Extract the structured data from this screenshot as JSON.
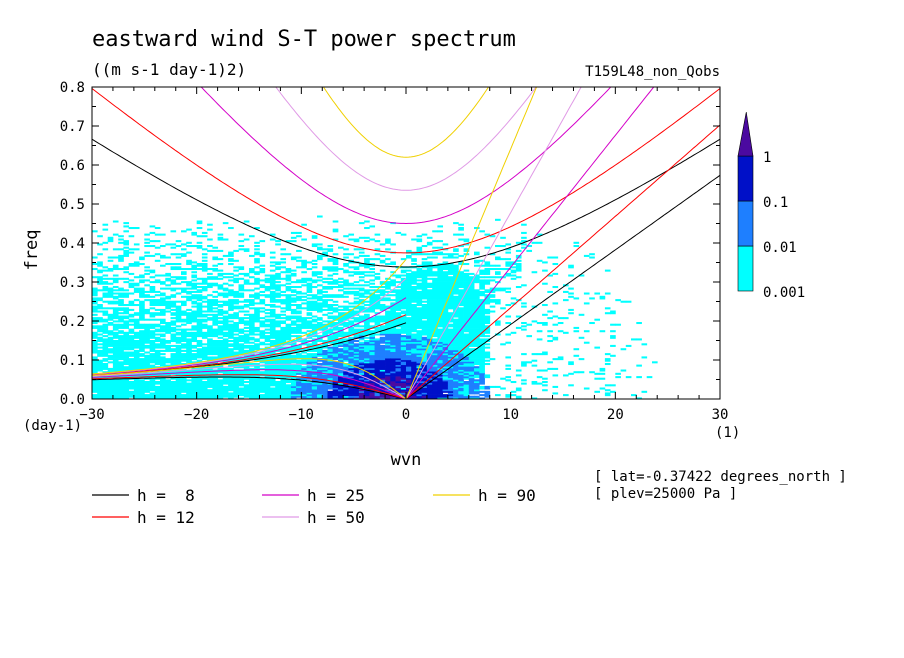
{
  "chart_data": {
    "type": "heatmap",
    "title": "eastward wind S-T power spectrum",
    "subtitle": "((m s-1 day-1)2)",
    "run_label": "T159L48_non_Qobs",
    "xlabel": "wvn",
    "ylabel": "freq",
    "x_unit": "(1)",
    "y_unit": "(day-1)",
    "xlim": [
      -30,
      30
    ],
    "ylim": [
      0,
      0.8
    ],
    "xticks": [
      "-30",
      "-20",
      "-10",
      "0",
      "10",
      "20",
      "30"
    ],
    "yticks": [
      "0.0",
      "0.1",
      "0.2",
      "0.3",
      "0.4",
      "0.5",
      "0.6",
      "0.7",
      "0.8"
    ],
    "colorbar": {
      "levels": [
        "0.001",
        "0.01",
        "0.1",
        "1"
      ],
      "colors": [
        "#00ffff",
        "#1e7fff",
        "#0010c8",
        "#4b0aa0"
      ],
      "extend": "max"
    },
    "dispersion_curves": [
      {
        "name": "h =  8",
        "h": 8,
        "color": "#000000"
      },
      {
        "name": "h = 12",
        "h": 12,
        "color": "#ff0000"
      },
      {
        "name": "h = 25",
        "h": 25,
        "color": "#d400c8"
      },
      {
        "name": "h = 50",
        "h": 50,
        "color": "#e09ae6"
      },
      {
        "name": "h = 90",
        "h": 90,
        "color": "#f0d000"
      }
    ],
    "power_regions": [
      {
        "level": "0.001",
        "description": "broad cyan band",
        "wvn_range": [
          -30,
          25
        ],
        "freq_range": [
          0.0,
          0.48
        ]
      },
      {
        "level": "0.01",
        "description": "low-frequency core",
        "wvn_range": [
          -9,
          7
        ],
        "freq_range": [
          0.0,
          0.15
        ]
      },
      {
        "level": "0.1",
        "description": "peak near origin",
        "wvn_range": [
          -6,
          4
        ],
        "freq_range": [
          0.0,
          0.05
        ]
      }
    ],
    "annotations": [
      "[ lat=-0.37422 degrees_north ]",
      "[ plev=25000 Pa ]"
    ]
  }
}
